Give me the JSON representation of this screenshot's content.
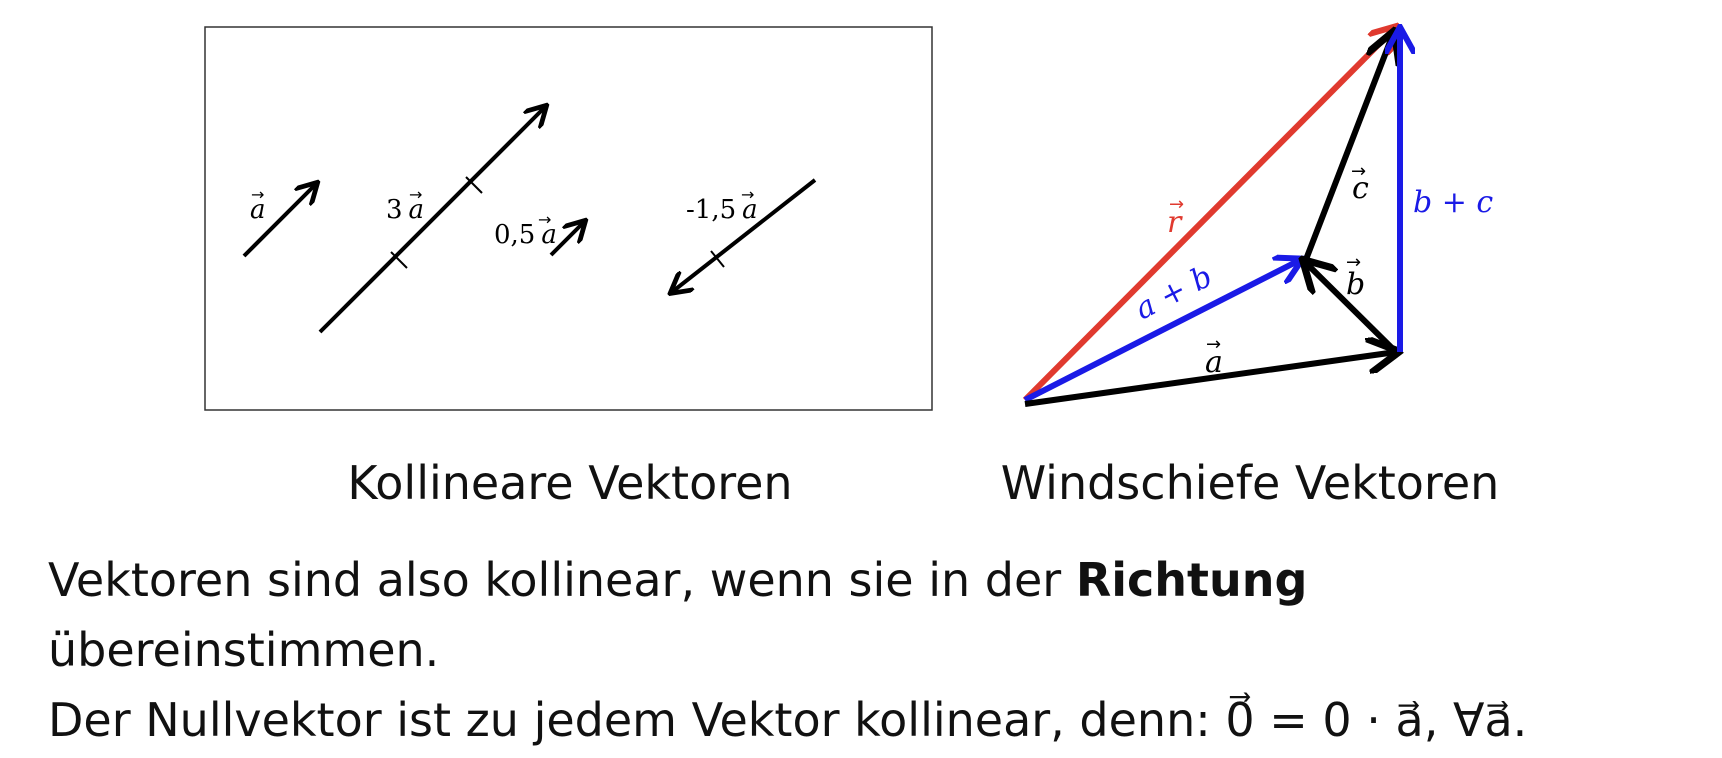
{
  "left_panel": {
    "caption": "Kollineare Vektoren",
    "labels": {
      "a": "a",
      "three_a": "3",
      "half_a": "0,5",
      "neg_a": "-1,5"
    }
  },
  "right_panel": {
    "caption": "Windschiefe Vektoren",
    "labels": {
      "r": "r",
      "a_plus_b": "a + b",
      "c": "c",
      "b": "b",
      "b_plus_c": "b + c",
      "a": "a"
    }
  },
  "colors": {
    "red": "#e03a2f",
    "blue": "#1a1ae6",
    "black": "#000000"
  },
  "text": {
    "line1_before": "Vektoren sind also kollinear, wenn sie in der ",
    "line1_bold": "Richtung",
    "line1_after": "übereinstimmen.",
    "line2_prefix": "Der Nullvektor ist zu jedem Vektor kollinear, denn: ",
    "line2_formula": "0⃗ = 0 · a⃗, ∀a⃗."
  }
}
